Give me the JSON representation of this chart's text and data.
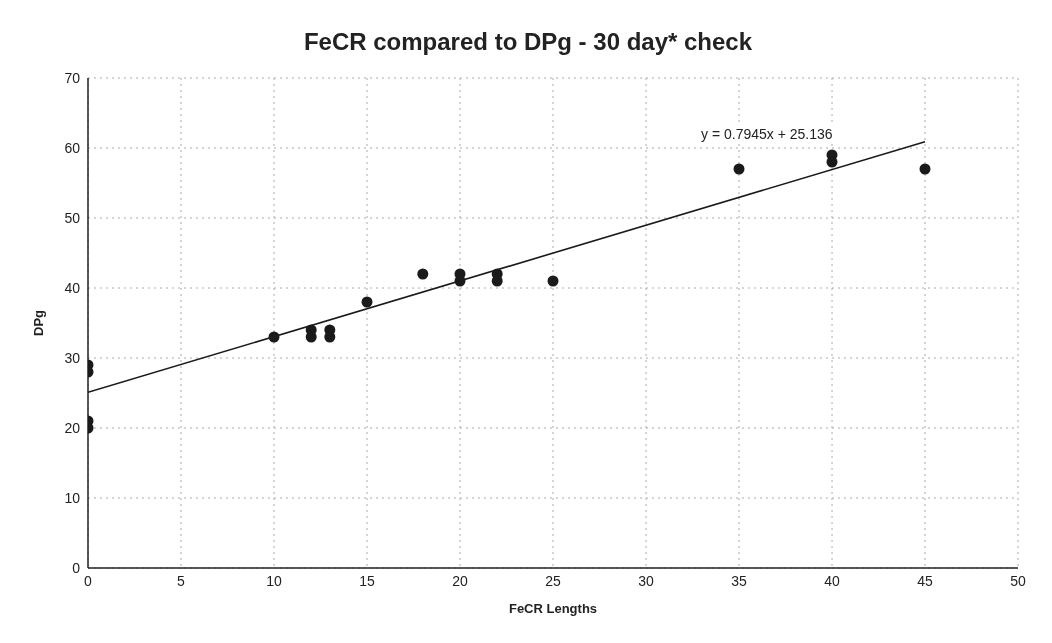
{
  "chart_data": {
    "type": "scatter",
    "title": "FeCR compared to DPg - 30 day* check",
    "xlabel": "FeCR Lengths",
    "ylabel": "DPg",
    "series": [
      {
        "color": "#1a1a1a",
        "marker": "circle",
        "x": [
          0,
          0,
          0,
          0,
          10,
          12,
          12,
          13,
          13,
          15,
          18,
          20,
          20,
          22,
          22,
          25,
          35,
          40,
          40,
          45
        ],
        "values": [
          29,
          28,
          21,
          20,
          33,
          34,
          33,
          34,
          33,
          38,
          42,
          42,
          41,
          42,
          41,
          41,
          57,
          59,
          58,
          57
        ]
      },
      {
        "type": "line",
        "color": "#1a1a1a",
        "marker": "none",
        "x": [
          0,
          45
        ],
        "values": [
          25.1,
          60.9
        ]
      }
    ],
    "annotations": [
      "y = 0.7945x + 25.136"
    ],
    "xlim": [
      0,
      50
    ],
    "xticks": [
      0,
      5,
      10,
      15,
      20,
      25,
      30,
      35,
      40,
      45,
      50
    ],
    "ylim": [
      0,
      70
    ],
    "yticks": [
      0,
      10,
      20,
      30,
      40,
      50,
      60,
      70
    ],
    "grid": true,
    "legend": false
  }
}
